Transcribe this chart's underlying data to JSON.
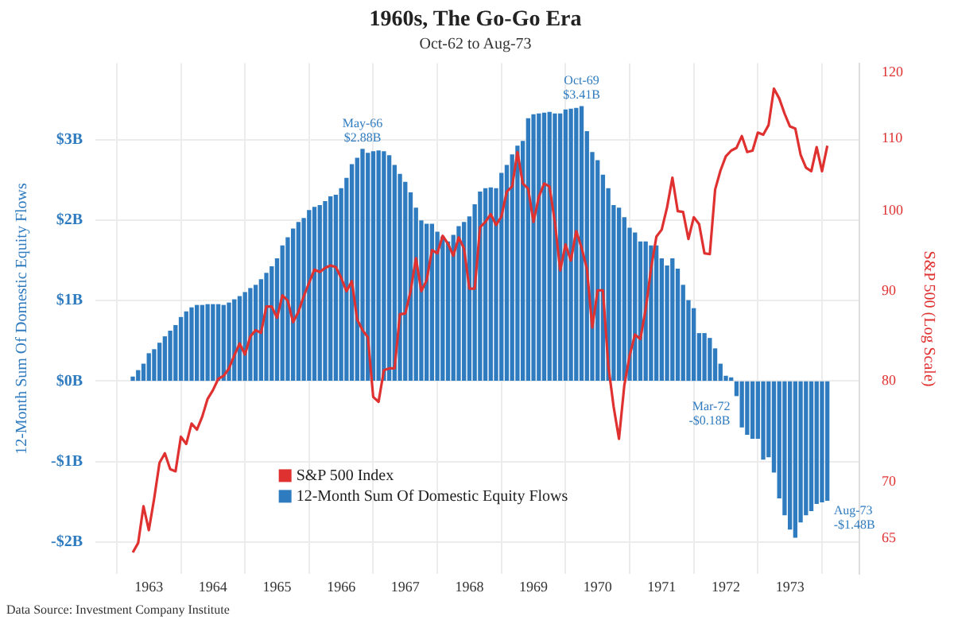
{
  "chart_data": {
    "type": "bar",
    "title": "1960s, The Go-Go Era",
    "subtitle": "Oct-62 to Aug-73",
    "ylabel": "12-Month Sum Of Domestic Equity Flows",
    "y2label": "S&P 500 (Log Scale)",
    "x": [
      "1962-10",
      "1962-11",
      "1962-12",
      "1963-01",
      "1963-02",
      "1963-03",
      "1963-04",
      "1963-05",
      "1963-06",
      "1963-07",
      "1963-08",
      "1963-09",
      "1963-10",
      "1963-11",
      "1963-12",
      "1964-01",
      "1964-02",
      "1964-03",
      "1964-04",
      "1964-05",
      "1964-06",
      "1964-07",
      "1964-08",
      "1964-09",
      "1964-10",
      "1964-11",
      "1964-12",
      "1965-01",
      "1965-02",
      "1965-03",
      "1965-04",
      "1965-05",
      "1965-06",
      "1965-07",
      "1965-08",
      "1965-09",
      "1965-10",
      "1965-11",
      "1965-12",
      "1966-01",
      "1966-02",
      "1966-03",
      "1966-04",
      "1966-05",
      "1966-06",
      "1966-07",
      "1966-08",
      "1966-09",
      "1966-10",
      "1966-11",
      "1966-12",
      "1967-01",
      "1967-02",
      "1967-03",
      "1967-04",
      "1967-05",
      "1967-06",
      "1967-07",
      "1967-08",
      "1967-09",
      "1967-10",
      "1967-11",
      "1967-12",
      "1968-01",
      "1968-02",
      "1968-03",
      "1968-04",
      "1968-05",
      "1968-06",
      "1968-07",
      "1968-08",
      "1968-09",
      "1968-10",
      "1968-11",
      "1968-12",
      "1969-01",
      "1969-02",
      "1969-03",
      "1969-04",
      "1969-05",
      "1969-06",
      "1969-07",
      "1969-08",
      "1969-09",
      "1969-10",
      "1969-11",
      "1969-12",
      "1970-01",
      "1970-02",
      "1970-03",
      "1970-04",
      "1970-05",
      "1970-06",
      "1970-07",
      "1970-08",
      "1970-09",
      "1970-10",
      "1970-11",
      "1970-12",
      "1971-01",
      "1971-02",
      "1971-03",
      "1971-04",
      "1971-05",
      "1971-06",
      "1971-07",
      "1971-08",
      "1971-09",
      "1971-10",
      "1971-11",
      "1971-12",
      "1972-01",
      "1972-02",
      "1972-03",
      "1972-04",
      "1972-05",
      "1972-06",
      "1972-07",
      "1972-08",
      "1972-09",
      "1972-10",
      "1972-11",
      "1972-12",
      "1973-01",
      "1973-02",
      "1973-03",
      "1973-04",
      "1973-05",
      "1973-06",
      "1973-07",
      "1973-08"
    ],
    "series": [
      {
        "name": "S&P 500 Index",
        "type": "line",
        "axis": "y2",
        "color": "#e03131",
        "values": [
          63.8,
          64.6,
          67.8,
          65.7,
          68.5,
          71.8,
          72.7,
          71.2,
          71.0,
          74.3,
          73.6,
          75.6,
          75.0,
          76.3,
          78.1,
          79.0,
          80.2,
          80.5,
          81.3,
          82.7,
          84.0,
          82.8,
          84.8,
          85.5,
          85.2,
          88.2,
          88.2,
          86.9,
          89.5,
          88.9,
          86.4,
          87.6,
          89.4,
          91.0,
          92.6,
          92.3,
          92.8,
          93.1,
          92.9,
          91.6,
          90.0,
          91.2,
          86.7,
          85.5,
          84.7,
          78.3,
          77.8,
          81.1,
          81.3,
          81.3,
          87.3,
          87.4,
          90.0,
          94.0,
          90.0,
          91.3,
          95.0,
          94.6,
          96.8,
          95.8,
          94.3,
          96.6,
          95.2,
          90.3,
          90.3,
          97.9,
          98.6,
          99.6,
          98.2,
          99.3,
          102.6,
          103.3,
          108.1,
          103.7,
          103.0,
          98.6,
          101.9,
          103.7,
          103.3,
          98.6,
          92.5,
          95.7,
          93.7,
          97.4,
          95.3,
          92.7,
          85.8,
          90.1,
          90.1,
          81.6,
          77.3,
          74.1,
          79.5,
          82.7,
          85.0,
          84.5,
          87.9,
          92.7,
          96.7,
          97.6,
          100.5,
          104.5,
          100.0,
          99.9,
          96.4,
          99.2,
          98.3,
          94.6,
          94.5,
          102.9,
          105.5,
          107.5,
          108.3,
          108.7,
          110.4,
          108.1,
          108.3,
          110.9,
          110.6,
          112.0,
          117.5,
          116.0,
          113.7,
          111.8,
          111.5,
          107.7,
          105.9,
          105.4,
          108.8,
          105.4,
          109.0
        ]
      },
      {
        "name": "12-Month Sum Of Domestic Equity Flows",
        "color": "#2f7bbf",
        "values": [
          0.05,
          0.13,
          0.21,
          0.34,
          0.39,
          0.47,
          0.55,
          0.62,
          0.69,
          0.79,
          0.86,
          0.91,
          0.94,
          0.94,
          0.95,
          0.95,
          0.95,
          0.94,
          0.97,
          1.01,
          1.05,
          1.1,
          1.15,
          1.19,
          1.26,
          1.34,
          1.42,
          1.52,
          1.68,
          1.78,
          1.89,
          1.97,
          2.02,
          2.12,
          2.16,
          2.18,
          2.23,
          2.29,
          2.31,
          2.39,
          2.52,
          2.69,
          2.77,
          2.88,
          2.83,
          2.85,
          2.86,
          2.85,
          2.8,
          2.68,
          2.57,
          2.47,
          2.34,
          2.15,
          1.99,
          1.95,
          1.95,
          1.85,
          1.79,
          1.73,
          1.81,
          1.92,
          1.97,
          2.04,
          2.19,
          2.35,
          2.39,
          2.4,
          2.39,
          2.58,
          2.68,
          2.81,
          2.92,
          2.98,
          3.26,
          3.31,
          3.32,
          3.33,
          3.34,
          3.32,
          3.32,
          3.37,
          3.38,
          3.39,
          3.41,
          3.1,
          2.84,
          2.74,
          2.56,
          2.39,
          2.18,
          2.15,
          2.03,
          1.9,
          1.84,
          1.73,
          1.73,
          1.68,
          1.68,
          1.52,
          1.43,
          1.52,
          1.39,
          1.19,
          1.0,
          0.9,
          0.59,
          0.59,
          0.53,
          0.4,
          0.21,
          0.06,
          0.04,
          -0.18,
          -0.57,
          -0.66,
          -0.71,
          -0.71,
          -0.97,
          -0.94,
          -1.13,
          -1.45,
          -1.66,
          -1.84,
          -1.94,
          -1.75,
          -1.66,
          -1.61,
          -1.52,
          -1.5,
          -1.48
        ]
      }
    ],
    "xlim": [
      "1962-03",
      "1974-02"
    ],
    "xticks": [
      {
        "value": "1963-01",
        "label": "1963"
      },
      {
        "value": "1964-01",
        "label": "1964"
      },
      {
        "value": "1965-01",
        "label": "1965"
      },
      {
        "value": "1966-01",
        "label": "1966"
      },
      {
        "value": "1967-01",
        "label": "1967"
      },
      {
        "value": "1968-01",
        "label": "1968"
      },
      {
        "value": "1969-01",
        "label": "1969"
      },
      {
        "value": "1970-01",
        "label": "1970"
      },
      {
        "value": "1971-01",
        "label": "1971"
      },
      {
        "value": "1972-01",
        "label": "1972"
      },
      {
        "value": "1973-01",
        "label": "1973"
      }
    ],
    "ylim": [
      -2.4,
      3.95
    ],
    "yticks": [
      {
        "value": -2,
        "label": "-$2B"
      },
      {
        "value": -1,
        "label": "-$1B"
      },
      {
        "value": 0,
        "label": "$0B"
      },
      {
        "value": 1,
        "label": "$1B"
      },
      {
        "value": 2,
        "label": "$2B"
      },
      {
        "value": 3,
        "label": "$3B"
      }
    ],
    "y2lim": [
      62,
      121.5
    ],
    "y2ticks": [
      65,
      70,
      80,
      90,
      100,
      110,
      120
    ],
    "log": "y2",
    "grid": true,
    "legend": "bottom",
    "annotations": [
      {
        "text": "May-66\n$2.88B",
        "x": "1966-05",
        "y": 2.88
      },
      {
        "text": "Oct-69\n$3.41B",
        "x": "1969-10",
        "y": 3.41
      },
      {
        "text": "Mar-72\n-$0.18B",
        "x": "1972-03",
        "y": -0.18
      },
      {
        "text": "Aug-73\n-$1.48B",
        "x": "1973-08",
        "y": -1.48
      },
      "Data Source: Investment Company Institute"
    ]
  }
}
